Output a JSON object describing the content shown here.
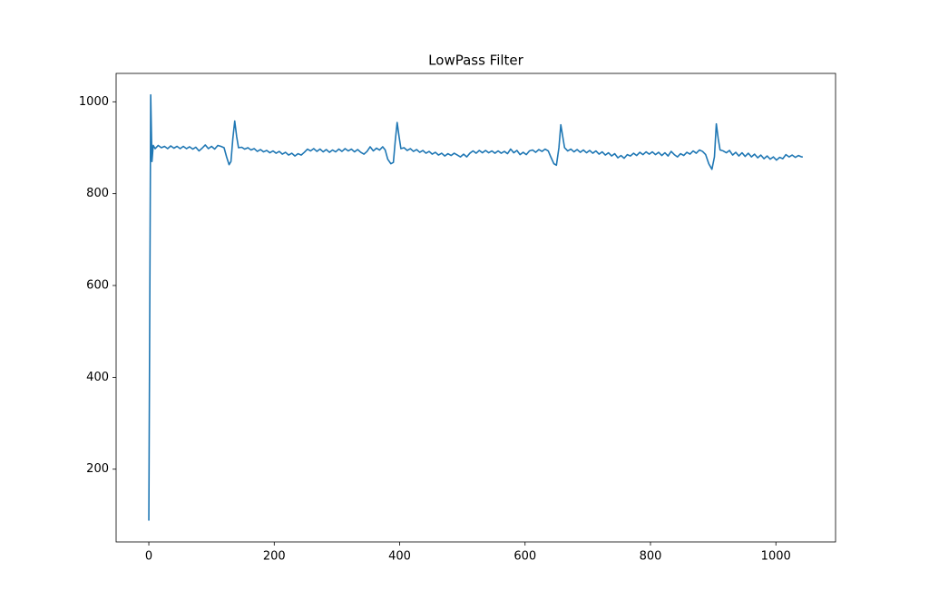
{
  "chart_data": {
    "type": "line",
    "title": "LowPass Filter",
    "x": [
      0,
      3,
      5,
      7,
      10,
      15,
      20,
      25,
      30,
      35,
      40,
      45,
      50,
      55,
      60,
      65,
      70,
      75,
      80,
      85,
      90,
      95,
      100,
      105,
      110,
      115,
      120,
      124,
      128,
      131,
      134,
      137,
      140,
      143,
      148,
      153,
      158,
      163,
      168,
      173,
      178,
      183,
      188,
      193,
      198,
      203,
      208,
      213,
      218,
      223,
      228,
      233,
      238,
      243,
      248,
      253,
      258,
      263,
      268,
      273,
      278,
      283,
      288,
      293,
      298,
      303,
      308,
      313,
      318,
      323,
      328,
      333,
      338,
      343,
      348,
      353,
      358,
      363,
      368,
      373,
      377,
      381,
      386,
      390,
      393,
      396,
      399,
      402,
      407,
      412,
      417,
      422,
      427,
      432,
      437,
      442,
      447,
      452,
      457,
      462,
      467,
      472,
      477,
      482,
      487,
      492,
      497,
      502,
      507,
      512,
      517,
      522,
      527,
      532,
      537,
      542,
      547,
      552,
      557,
      562,
      567,
      572,
      577,
      582,
      587,
      592,
      597,
      602,
      607,
      612,
      617,
      622,
      627,
      632,
      637,
      641,
      646,
      650,
      654,
      657,
      660,
      663,
      668,
      673,
      678,
      683,
      688,
      693,
      698,
      703,
      708,
      713,
      718,
      723,
      728,
      733,
      738,
      743,
      748,
      753,
      758,
      763,
      768,
      773,
      778,
      783,
      788,
      793,
      798,
      803,
      808,
      813,
      818,
      823,
      828,
      833,
      838,
      843,
      848,
      853,
      858,
      863,
      868,
      873,
      878,
      883,
      888,
      893,
      898,
      902,
      905,
      908,
      911,
      916,
      921,
      926,
      931,
      936,
      941,
      946,
      951,
      956,
      961,
      966,
      971,
      976,
      981,
      986,
      991,
      996,
      1001,
      1006,
      1011,
      1016,
      1021,
      1026,
      1031,
      1036,
      1041,
      1043
    ],
    "series": [
      {
        "name": "LowPass",
        "color": "#1f77b4",
        "values": [
          88,
          1015,
          870,
          905,
          898,
          905,
          900,
          903,
          898,
          904,
          899,
          903,
          898,
          903,
          898,
          902,
          897,
          901,
          893,
          899,
          906,
          898,
          903,
          897,
          905,
          903,
          900,
          880,
          863,
          870,
          920,
          958,
          925,
          900,
          901,
          897,
          900,
          895,
          898,
          892,
          896,
          891,
          894,
          889,
          893,
          888,
          892,
          886,
          890,
          884,
          888,
          882,
          887,
          884,
          890,
          897,
          893,
          898,
          892,
          897,
          891,
          896,
          890,
          895,
          891,
          897,
          892,
          898,
          893,
          897,
          891,
          896,
          890,
          886,
          892,
          902,
          893,
          899,
          895,
          902,
          895,
          875,
          865,
          868,
          915,
          955,
          925,
          898,
          900,
          894,
          898,
          892,
          896,
          890,
          894,
          888,
          892,
          886,
          890,
          884,
          888,
          882,
          887,
          883,
          888,
          884,
          880,
          886,
          880,
          888,
          893,
          888,
          894,
          889,
          894,
          889,
          893,
          888,
          893,
          888,
          892,
          887,
          897,
          889,
          894,
          885,
          890,
          885,
          893,
          895,
          890,
          896,
          892,
          897,
          893,
          880,
          865,
          862,
          900,
          950,
          925,
          900,
          893,
          897,
          891,
          896,
          890,
          895,
          889,
          894,
          888,
          893,
          886,
          891,
          884,
          889,
          882,
          887,
          878,
          883,
          877,
          885,
          882,
          888,
          883,
          890,
          885,
          891,
          886,
          891,
          885,
          890,
          883,
          889,
          882,
          892,
          885,
          880,
          887,
          883,
          890,
          886,
          893,
          888,
          895,
          892,
          885,
          865,
          853,
          880,
          952,
          920,
          895,
          893,
          889,
          894,
          884,
          890,
          882,
          889,
          881,
          888,
          880,
          886,
          878,
          884,
          876,
          882,
          875,
          880,
          873,
          879,
          876,
          885,
          880,
          884,
          879,
          883,
          880,
          880
        ]
      }
    ],
    "xlim": [
      -52.15,
      1095.15
    ],
    "ylim": [
      41.6,
      1061.8
    ],
    "xticks": [
      0,
      200,
      400,
      600,
      800,
      1000
    ],
    "yticks": [
      200,
      400,
      600,
      800,
      1000
    ]
  }
}
